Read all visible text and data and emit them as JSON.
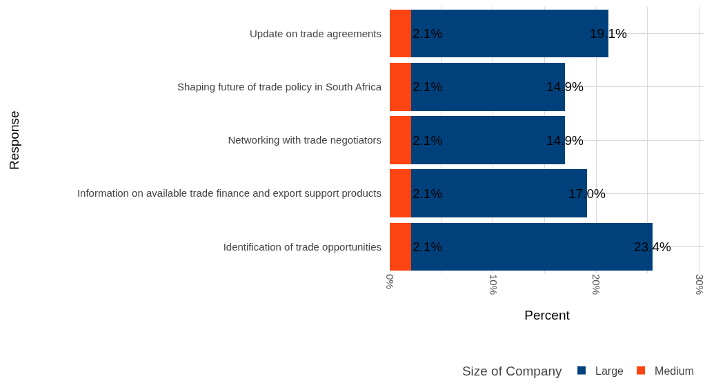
{
  "chart_data": {
    "type": "bar",
    "orientation": "horizontal",
    "stacked": true,
    "xlabel": "Percent",
    "ylabel": "Response",
    "legend_title": "Size of Company",
    "legend": "bottom",
    "grid": true,
    "categories": [
      "Update on trade agreements",
      "Shaping future of trade policy in South Africa",
      "Networking with trade negotiators",
      "Information on available trade finance and export support products",
      "Identification of trade opportunities"
    ],
    "series": [
      {
        "name": "Medium",
        "color": "#fc4512",
        "values": [
          2.1,
          2.1,
          2.1,
          2.1,
          2.1
        ],
        "value_labels": [
          "2.1%",
          "2.1%",
          "2.1%",
          "2.1%",
          "2.1%"
        ]
      },
      {
        "name": "Large",
        "color": "#00417c",
        "values": [
          19.1,
          14.9,
          14.9,
          17.0,
          23.4
        ],
        "value_labels": [
          "19.1%",
          "14.9%",
          "14.9%",
          "17.0%",
          "23.4%"
        ]
      }
    ],
    "xlim": [
      0,
      30.5
    ],
    "xticks": [
      {
        "value": 0,
        "label": "0%"
      },
      {
        "value": 5,
        "label": null
      },
      {
        "value": 10,
        "label": "10%"
      },
      {
        "value": 15,
        "label": null
      },
      {
        "value": 20,
        "label": "20%"
      },
      {
        "value": 25,
        "label": null
      },
      {
        "value": 30,
        "label": "30%"
      }
    ]
  }
}
